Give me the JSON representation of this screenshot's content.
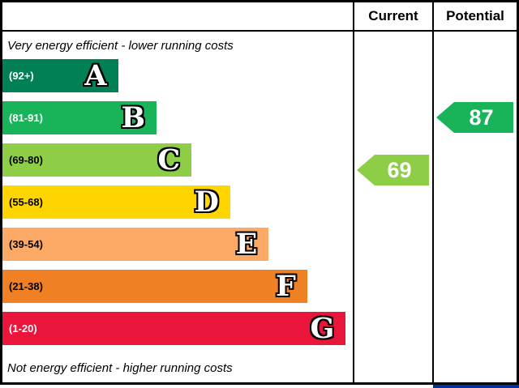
{
  "header": {
    "current_label": "Current",
    "potential_label": "Potential"
  },
  "captions": {
    "top": "Very energy efficient - lower running costs",
    "bottom": "Not energy efficient - higher running costs"
  },
  "bands": [
    {
      "letter": "A",
      "range": "(92+)",
      "color": "#008054",
      "label_color": "#ffffff",
      "width": "33%"
    },
    {
      "letter": "B",
      "range": "(81-91)",
      "color": "#19b459",
      "label_color": "#ffffff",
      "width": "44%"
    },
    {
      "letter": "C",
      "range": "(69-80)",
      "color": "#8dce46",
      "label_color": "#000000",
      "width": "54%"
    },
    {
      "letter": "D",
      "range": "(55-68)",
      "color": "#ffd500",
      "label_color": "#000000",
      "width": "65%"
    },
    {
      "letter": "E",
      "range": "(39-54)",
      "color": "#fcaa65",
      "label_color": "#000000",
      "width": "76%"
    },
    {
      "letter": "F",
      "range": "(21-38)",
      "color": "#ef8023",
      "label_color": "#000000",
      "width": "87%"
    },
    {
      "letter": "G",
      "range": "(1-20)",
      "color": "#e9153b",
      "label_color": "#ffffff",
      "width": "98%"
    }
  ],
  "ratings": {
    "current": {
      "value": "69",
      "color": "#8dce46"
    },
    "potential": {
      "value": "87",
      "color": "#19b459"
    }
  },
  "accents": {
    "eu_blue": "#003399"
  },
  "chart_data": {
    "type": "bar",
    "categories": [
      "A",
      "B",
      "C",
      "D",
      "E",
      "F",
      "G"
    ],
    "band_ranges": [
      "92+",
      "81-91",
      "69-80",
      "55-68",
      "39-54",
      "21-38",
      "1-20"
    ],
    "band_colors": [
      "#008054",
      "#19b459",
      "#8dce46",
      "#ffd500",
      "#fcaa65",
      "#ef8023",
      "#e9153b"
    ],
    "bar_lengths_relative": [
      0.33,
      0.44,
      0.54,
      0.65,
      0.76,
      0.87,
      0.98
    ],
    "series": [
      {
        "name": "Current",
        "value": 69,
        "band": "C",
        "color": "#8dce46"
      },
      {
        "name": "Potential",
        "value": 87,
        "band": "B",
        "color": "#19b459"
      }
    ],
    "annotations": [
      "Very energy efficient - lower running costs",
      "Not energy efficient - higher running costs"
    ],
    "legend_position": "none",
    "grid": false
  }
}
